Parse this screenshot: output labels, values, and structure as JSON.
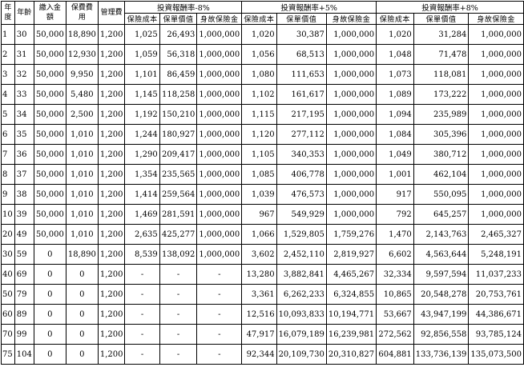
{
  "table": {
    "headers": {
      "policy_year": "年度",
      "age": "年齡",
      "contribution": "繳入金額",
      "premium": "保費費用",
      "admin_fee": "管理費",
      "scenarios": [
        "投資報酬率-8%",
        "投資報酬率+5%",
        "投資報酬率+8%"
      ],
      "sub": [
        "保險成本",
        "保單價值",
        "身故保險金"
      ]
    },
    "rows": [
      [
        "1",
        "30",
        "50,000",
        "18,890",
        "1,200",
        "1,025",
        "26,493",
        "1,000,000",
        "1,020",
        "30,387",
        "1,000,000",
        "1,020",
        "31,284",
        "1,000,000"
      ],
      [
        "2",
        "31",
        "50,000",
        "12,930",
        "1,200",
        "1,059",
        "56,318",
        "1,000,000",
        "1,056",
        "68,513",
        "1,000,000",
        "1,048",
        "71,478",
        "1,000,000"
      ],
      [
        "3",
        "32",
        "50,000",
        "9,950",
        "1,200",
        "1,101",
        "86,459",
        "1,000,000",
        "1,080",
        "111,653",
        "1,000,000",
        "1,073",
        "118,081",
        "1,000,000"
      ],
      [
        "4",
        "33",
        "50,000",
        "5,480",
        "1,200",
        "1,145",
        "118,258",
        "1,000,000",
        "1,102",
        "161,617",
        "1,000,000",
        "1,089",
        "173,222",
        "1,000,000"
      ],
      [
        "5",
        "34",
        "50,000",
        "2,500",
        "1,200",
        "1,192",
        "150,210",
        "1,000,000",
        "1,115",
        "217,195",
        "1,000,000",
        "1,094",
        "235,989",
        "1,000,000"
      ],
      [
        "6",
        "35",
        "50,000",
        "1,010",
        "1,200",
        "1,244",
        "180,927",
        "1,000,000",
        "1,120",
        "277,112",
        "1,000,000",
        "1,084",
        "305,396",
        "1,000,000"
      ],
      [
        "7",
        "36",
        "50,000",
        "1,010",
        "1,200",
        "1,290",
        "209,417",
        "1,000,000",
        "1,105",
        "340,353",
        "1,000,000",
        "1,049",
        "380,712",
        "1,000,000"
      ],
      [
        "8",
        "37",
        "50,000",
        "1,010",
        "1,200",
        "1,354",
        "235,565",
        "1,000,000",
        "1,085",
        "406,778",
        "1,000,000",
        "1,001",
        "462,104",
        "1,000,000"
      ],
      [
        "9",
        "38",
        "50,000",
        "1,010",
        "1,200",
        "1,414",
        "259,564",
        "1,000,000",
        "1,039",
        "476,573",
        "1,000,000",
        "917",
        "550,095",
        "1,000,000"
      ],
      [
        "10",
        "39",
        "50,000",
        "1,010",
        "1,200",
        "1,469",
        "281,591",
        "1,000,000",
        "967",
        "549,929",
        "1,000,000",
        "792",
        "645,257",
        "1,000,000"
      ],
      [
        "20",
        "49",
        "50,000",
        "1,010",
        "1,200",
        "2,635",
        "425,277",
        "1,000,000",
        "1,066",
        "1,529,805",
        "1,759,276",
        "1,470",
        "2,143,763",
        "2,465,327"
      ],
      [
        "30",
        "59",
        "0",
        "18,890",
        "1,200",
        "8,539",
        "138,092",
        "1,000,000",
        "3,602",
        "2,452,110",
        "2,819,927",
        "6,602",
        "4,563,644",
        "5,248,191"
      ],
      [
        "40",
        "69",
        "0",
        "0",
        "1,200",
        "-",
        "-",
        "-",
        "13,280",
        "3,882,841",
        "4,465,267",
        "32,334",
        "9,597,594",
        "11,037,233"
      ],
      [
        "50",
        "79",
        "0",
        "0",
        "1,200",
        "-",
        "-",
        "-",
        "3,361",
        "6,262,233",
        "6,324,855",
        "10,865",
        "20,548,278",
        "20,753,761"
      ],
      [
        "60",
        "89",
        "0",
        "0",
        "1,200",
        "-",
        "-",
        "-",
        "12,516",
        "10,093,833",
        "10,194,771",
        "53,667",
        "43,947,199",
        "44,386,671"
      ],
      [
        "70",
        "99",
        "0",
        "0",
        "1,200",
        "-",
        "-",
        "-",
        "47,917",
        "16,079,189",
        "16,239,981",
        "272,562",
        "92,856,558",
        "93,785,124"
      ],
      [
        "75",
        "104",
        "0",
        "0",
        "1,200",
        "-",
        "-",
        "-",
        "92,344",
        "20,109,730",
        "20,310,827",
        "604,881",
        "133,736,139",
        "135,073,500"
      ]
    ]
  }
}
